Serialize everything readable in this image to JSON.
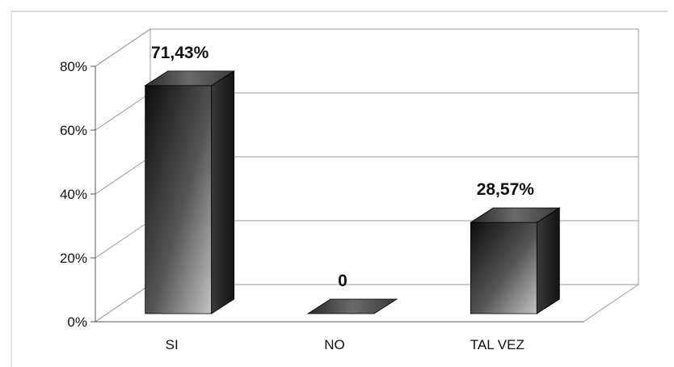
{
  "chart_data": {
    "type": "bar",
    "style": "3d-column",
    "categories": [
      "SI",
      "NO",
      "TAL VEZ"
    ],
    "values": [
      71.43,
      0,
      28.57
    ],
    "data_labels": [
      "71,43%",
      "0",
      "28,57%"
    ],
    "title": "",
    "xlabel": "",
    "ylabel": "",
    "ylim": [
      0,
      80
    ],
    "yticks": [
      0,
      20,
      40,
      60,
      80
    ],
    "ytick_labels": [
      "0%",
      "20%",
      "40%",
      "60%",
      "80%"
    ],
    "grid": true,
    "legend": "none",
    "colors": {
      "bar_light": "#b8b8b8",
      "bar_dark": "#1a1a1a",
      "bar_top": "#5a5a5a",
      "bar_side": "#222222",
      "grid": "#9a9a9a",
      "axis": "#555555"
    }
  }
}
